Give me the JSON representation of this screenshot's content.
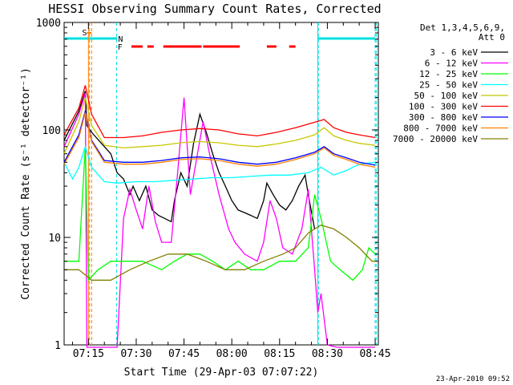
{
  "chart_data": {
    "type": "line",
    "title": "HESSI Observing Summary Count Rates, Corrected",
    "xlabel": "Start Time (29-Apr-03 07:07:22)",
    "ylabel": "Corrected Count Rate (s⁻¹ detector⁻¹)",
    "ylog": true,
    "ylim": [
      1,
      1000
    ],
    "xlim": [
      "07:07:22",
      "08:46:00"
    ],
    "xticks": [
      "07:15",
      "07:30",
      "07:45",
      "08:00",
      "08:15",
      "08:30",
      "08:45"
    ],
    "yticks": [
      "1",
      "10",
      "100",
      "1000"
    ],
    "legend": {
      "placement": "right",
      "header": [
        "Det 1,3,4,5,6,9,",
        "Att 0"
      ]
    },
    "footer": "23-Apr-2010 09:52",
    "flags": {
      "S_label": "S",
      "N_label": "N",
      "F_label": "F",
      "saa": {
        "color": "#ff8000",
        "start": "07:14:30",
        "end": "07:16:00"
      },
      "night": {
        "color": "#00e0e0",
        "intervals": [
          [
            "07:07:22",
            "07:24:00"
          ],
          [
            "08:27:00",
            "08:45:00"
          ]
        ]
      },
      "flare": {
        "color": "#ff0000",
        "intervals": [
          [
            "07:28:30",
            "07:32:00"
          ],
          [
            "07:33:30",
            "07:35:30"
          ],
          [
            "07:38:30",
            "07:50:30"
          ],
          [
            "07:51:00",
            "08:02:30"
          ],
          [
            "08:11:00",
            "08:14:00"
          ],
          [
            "08:18:00",
            "08:20:00"
          ]
        ]
      },
      "vlines": [
        {
          "time": "07:15:00",
          "color": "#ff8000",
          "style": "solid"
        },
        {
          "time": "07:15:20",
          "color": "#ff8000",
          "style": "dashed"
        },
        {
          "time": "07:16:00",
          "color": "#ff8000",
          "style": "dashed"
        },
        {
          "time": "07:23:50",
          "color": "#00e0e0",
          "style": "dashed"
        },
        {
          "time": "08:27:00",
          "color": "#00e0e0",
          "style": "solid"
        },
        {
          "time": "08:27:10",
          "color": "#00e0e0",
          "style": "dashed"
        },
        {
          "time": "08:45:00",
          "color": "#00e0e0",
          "style": "dashed"
        },
        {
          "time": "08:45:20",
          "color": "#00e0e0",
          "style": "dashed"
        }
      ]
    },
    "series": [
      {
        "name": "3 - 6 keV",
        "color": "#000000",
        "points": [
          [
            "07:07:22",
            80
          ],
          [
            "07:12:00",
            150
          ],
          [
            "07:14:00",
            230
          ],
          [
            "07:14:30",
            110
          ],
          [
            "07:16:00",
            95
          ],
          [
            "07:20:00",
            70
          ],
          [
            "07:22:00",
            60
          ],
          [
            "07:24:00",
            40
          ],
          [
            "07:26:00",
            35
          ],
          [
            "07:28:00",
            25
          ],
          [
            "07:29:00",
            30
          ],
          [
            "07:31:00",
            22
          ],
          [
            "07:33:00",
            30
          ],
          [
            "07:35:00",
            18
          ],
          [
            "07:37:00",
            16
          ],
          [
            "07:39:00",
            15
          ],
          [
            "07:41:00",
            14
          ],
          [
            "07:42:00",
            22
          ],
          [
            "07:44:00",
            40
          ],
          [
            "07:46:00",
            30
          ],
          [
            "07:48:00",
            75
          ],
          [
            "07:50:00",
            140
          ],
          [
            "07:52:00",
            95
          ],
          [
            "07:54:00",
            60
          ],
          [
            "07:56:00",
            40
          ],
          [
            "07:58:00",
            30
          ],
          [
            "08:00:00",
            22
          ],
          [
            "08:02:00",
            18
          ],
          [
            "08:04:00",
            17
          ],
          [
            "08:06:00",
            16
          ],
          [
            "08:08:00",
            15
          ],
          [
            "08:10:00",
            22
          ],
          [
            "08:11:00",
            32
          ],
          [
            "08:13:00",
            25
          ],
          [
            "08:15:00",
            20
          ],
          [
            "08:17:00",
            18
          ],
          [
            "08:19:00",
            22
          ],
          [
            "08:21:00",
            30
          ],
          [
            "08:23:00",
            38
          ],
          [
            "08:24:00",
            25
          ],
          [
            "08:26:00",
            12
          ]
        ]
      },
      {
        "name": "6 - 12 keV",
        "color": "#ff00ff",
        "points": [
          [
            "07:07:22",
            70
          ],
          [
            "07:12:00",
            140
          ],
          [
            "07:14:00",
            220
          ],
          [
            "07:14:30",
            0.8
          ],
          [
            "07:16:00",
            0.8
          ],
          [
            "07:24:00",
            0.8
          ],
          [
            "07:26:00",
            15
          ],
          [
            "07:28:00",
            28
          ],
          [
            "07:30:00",
            18
          ],
          [
            "07:32:00",
            12
          ],
          [
            "07:34:00",
            30
          ],
          [
            "07:36:00",
            14
          ],
          [
            "07:38:00",
            9
          ],
          [
            "07:41:00",
            9
          ],
          [
            "07:43:00",
            40
          ],
          [
            "07:45:00",
            200
          ],
          [
            "07:47:00",
            25
          ],
          [
            "07:49:00",
            55
          ],
          [
            "07:51:00",
            120
          ],
          [
            "07:53:00",
            60
          ],
          [
            "07:56:00",
            25
          ],
          [
            "07:59:00",
            12
          ],
          [
            "08:01:00",
            9
          ],
          [
            "08:04:00",
            7
          ],
          [
            "08:08:00",
            6
          ],
          [
            "08:10:00",
            9
          ],
          [
            "08:12:00",
            22
          ],
          [
            "08:14:00",
            15
          ],
          [
            "08:16:00",
            8
          ],
          [
            "08:19:00",
            7
          ],
          [
            "08:22:00",
            12
          ],
          [
            "08:24:00",
            28
          ],
          [
            "08:25:00",
            12
          ],
          [
            "08:26:00",
            5
          ],
          [
            "08:27:00",
            2
          ],
          [
            "08:28:00",
            3
          ],
          [
            "08:30:00",
            1
          ],
          [
            "08:33:00",
            0.8
          ],
          [
            "08:45:00",
            0.8
          ]
        ]
      },
      {
        "name": "12 - 25 keV",
        "color": "#00ff00",
        "points": [
          [
            "07:07:22",
            6
          ],
          [
            "07:12:00",
            6
          ],
          [
            "07:14:00",
            70
          ],
          [
            "07:15:00",
            4
          ],
          [
            "07:18:00",
            5
          ],
          [
            "07:22:00",
            6
          ],
          [
            "07:26:00",
            6
          ],
          [
            "07:32:00",
            6
          ],
          [
            "07:38:00",
            5
          ],
          [
            "07:42:00",
            6
          ],
          [
            "07:46:00",
            7
          ],
          [
            "07:50:00",
            7
          ],
          [
            "07:54:00",
            6
          ],
          [
            "07:58:00",
            5
          ],
          [
            "08:02:00",
            6
          ],
          [
            "08:06:00",
            5
          ],
          [
            "08:10:00",
            5
          ],
          [
            "08:15:00",
            6
          ],
          [
            "08:20:00",
            6
          ],
          [
            "08:24:00",
            8
          ],
          [
            "08:26:00",
            25
          ],
          [
            "08:28:00",
            15
          ],
          [
            "08:31:00",
            6
          ],
          [
            "08:34:00",
            5
          ],
          [
            "08:38:00",
            4
          ],
          [
            "08:41:00",
            5
          ],
          [
            "08:43:00",
            8
          ],
          [
            "08:45:00",
            7
          ]
        ]
      },
      {
        "name": "25 - 50 keV",
        "color": "#00ffff",
        "points": [
          [
            "07:07:22",
            50
          ],
          [
            "07:10:00",
            35
          ],
          [
            "07:12:00",
            45
          ],
          [
            "07:14:00",
            70
          ],
          [
            "07:16:00",
            45
          ],
          [
            "07:20:00",
            33
          ],
          [
            "07:24:00",
            32
          ],
          [
            "07:30:00",
            33
          ],
          [
            "07:36:00",
            33
          ],
          [
            "07:42:00",
            34
          ],
          [
            "07:48:00",
            35
          ],
          [
            "07:54:00",
            36
          ],
          [
            "08:00:00",
            36
          ],
          [
            "08:06:00",
            37
          ],
          [
            "08:12:00",
            38
          ],
          [
            "08:18:00",
            38
          ],
          [
            "08:24:00",
            40
          ],
          [
            "08:28:00",
            45
          ],
          [
            "08:32:00",
            38
          ],
          [
            "08:36:00",
            42
          ],
          [
            "08:40:00",
            48
          ],
          [
            "08:45:00",
            50
          ]
        ]
      },
      {
        "name": "50 - 100 keV",
        "color": "#c8c800",
        "points": [
          [
            "07:07:22",
            60
          ],
          [
            "07:12:00",
            120
          ],
          [
            "07:14:00",
            200
          ],
          [
            "07:16:00",
            110
          ],
          [
            "07:20:00",
            72
          ],
          [
            "07:26:00",
            68
          ],
          [
            "07:32:00",
            70
          ],
          [
            "07:38:00",
            72
          ],
          [
            "07:44:00",
            76
          ],
          [
            "07:50:00",
            78
          ],
          [
            "07:56:00",
            76
          ],
          [
            "08:02:00",
            72
          ],
          [
            "08:08:00",
            70
          ],
          [
            "08:14:00",
            74
          ],
          [
            "08:20:00",
            80
          ],
          [
            "08:26:00",
            90
          ],
          [
            "08:29:00",
            105
          ],
          [
            "08:32:00",
            88
          ],
          [
            "08:36:00",
            80
          ],
          [
            "08:40:00",
            75
          ],
          [
            "08:45:00",
            72
          ]
        ]
      },
      {
        "name": "100 - 300 keV",
        "color": "#ff0000",
        "points": [
          [
            "07:07:22",
            90
          ],
          [
            "07:12:00",
            160
          ],
          [
            "07:14:00",
            260
          ],
          [
            "07:16:00",
            140
          ],
          [
            "07:20:00",
            85
          ],
          [
            "07:26:00",
            85
          ],
          [
            "07:32:00",
            88
          ],
          [
            "07:38:00",
            95
          ],
          [
            "07:44:00",
            100
          ],
          [
            "07:50:00",
            103
          ],
          [
            "07:56:00",
            100
          ],
          [
            "08:02:00",
            92
          ],
          [
            "08:08:00",
            88
          ],
          [
            "08:14:00",
            95
          ],
          [
            "08:20:00",
            105
          ],
          [
            "08:26:00",
            118
          ],
          [
            "08:29:00",
            125
          ],
          [
            "08:32:00",
            105
          ],
          [
            "08:36:00",
            95
          ],
          [
            "08:40:00",
            90
          ],
          [
            "08:45:00",
            85
          ]
        ]
      },
      {
        "name": "300 - 800 keV",
        "color": "#0000ff",
        "points": [
          [
            "07:07:22",
            50
          ],
          [
            "07:12:00",
            90
          ],
          [
            "07:14:00",
            150
          ],
          [
            "07:16:00",
            80
          ],
          [
            "07:20:00",
            52
          ],
          [
            "07:26:00",
            50
          ],
          [
            "07:32:00",
            50
          ],
          [
            "07:38:00",
            52
          ],
          [
            "07:44:00",
            55
          ],
          [
            "07:50:00",
            56
          ],
          [
            "07:56:00",
            54
          ],
          [
            "08:02:00",
            50
          ],
          [
            "08:08:00",
            48
          ],
          [
            "08:14:00",
            50
          ],
          [
            "08:20:00",
            55
          ],
          [
            "08:26:00",
            62
          ],
          [
            "08:29:00",
            70
          ],
          [
            "08:32:00",
            60
          ],
          [
            "08:36:00",
            55
          ],
          [
            "08:40:00",
            50
          ],
          [
            "08:45:00",
            47
          ]
        ]
      },
      {
        "name": "800 - 7000 keV",
        "color": "#ff8000",
        "points": [
          [
            "07:07:22",
            48
          ],
          [
            "07:12:00",
            85
          ],
          [
            "07:14:00",
            145
          ],
          [
            "07:16:00",
            78
          ],
          [
            "07:20:00",
            50
          ],
          [
            "07:26:00",
            48
          ],
          [
            "07:32:00",
            48
          ],
          [
            "07:38:00",
            50
          ],
          [
            "07:44:00",
            53
          ],
          [
            "07:50:00",
            54
          ],
          [
            "07:56:00",
            52
          ],
          [
            "08:02:00",
            48
          ],
          [
            "08:08:00",
            46
          ],
          [
            "08:14:00",
            48
          ],
          [
            "08:20:00",
            53
          ],
          [
            "08:26:00",
            60
          ],
          [
            "08:29:00",
            68
          ],
          [
            "08:32:00",
            58
          ],
          [
            "08:36:00",
            53
          ],
          [
            "08:40:00",
            48
          ],
          [
            "08:45:00",
            45
          ]
        ]
      },
      {
        "name": "7000 - 20000 keV",
        "color": "#808000",
        "points": [
          [
            "07:07:22",
            5
          ],
          [
            "07:12:00",
            5
          ],
          [
            "07:16:00",
            4
          ],
          [
            "07:22:00",
            4
          ],
          [
            "07:28:00",
            5
          ],
          [
            "07:34:00",
            6
          ],
          [
            "07:40:00",
            7
          ],
          [
            "07:46:00",
            7
          ],
          [
            "07:52:00",
            6
          ],
          [
            "07:58:00",
            5
          ],
          [
            "08:04:00",
            5
          ],
          [
            "08:10:00",
            6
          ],
          [
            "08:16:00",
            7
          ],
          [
            "08:20:00",
            8
          ],
          [
            "08:24:00",
            11
          ],
          [
            "08:28:00",
            13
          ],
          [
            "08:32:00",
            12
          ],
          [
            "08:36:00",
            10
          ],
          [
            "08:40:00",
            8
          ],
          [
            "08:44:00",
            6
          ],
          [
            "08:45:00",
            6
          ]
        ]
      }
    ]
  }
}
